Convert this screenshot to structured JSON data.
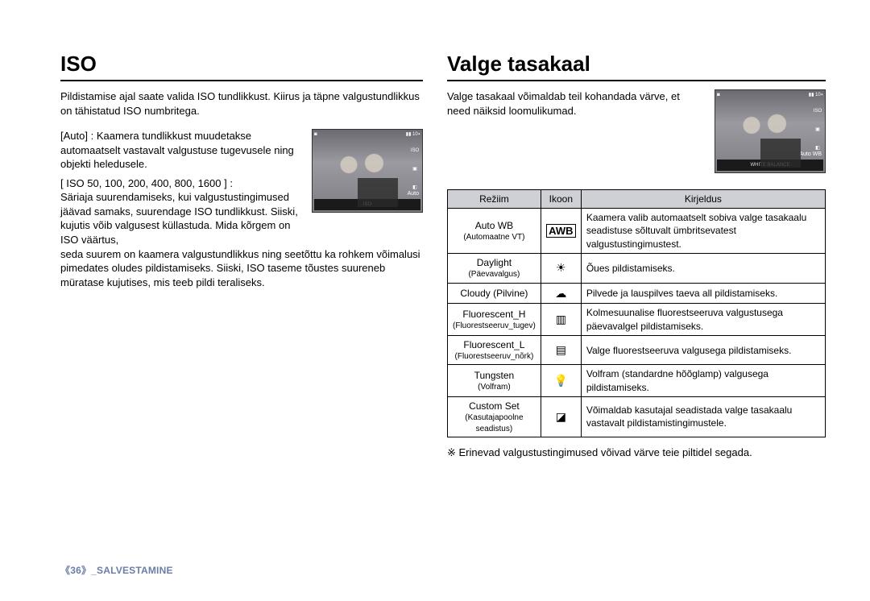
{
  "left": {
    "title": "ISO",
    "intro": "Pildistamise ajal saate valida ISO tundlikkust.\nKiirus ja täpne valgustundlikkus on tähistatud ISO numbritega.",
    "auto_label": "[Auto] :",
    "auto_text": "Kaamera tundlikkust muudetakse automaatselt vastavalt valgustuse tugevusele ning objekti heledusele.",
    "values_label": "[ ISO 50, 100, 200, 400, 800, 1600 ] :",
    "values_text": "Säriaja suurendamiseks, kui valgustustingimused jäävad samaks, suurendage ISO tundlikkust. Siiski, kujutis võib valgusest küllastuda. Mida kõrgem on ISO väärtus,",
    "rest": "seda suurem on kaamera valgustundlikkus ning seetõttu ka rohkem võimalusi pimedates oludes pildistamiseks. Siiski, ISO taseme tõustes suureneb müratase kujutises, mis teeb pildi teraliseks.",
    "thumb_label": "Auto",
    "thumb_strip": "ISO"
  },
  "right": {
    "title": "Valge tasakaal",
    "intro": "Valge tasakaal võimaldab teil kohandada värve, et need näiksid loomulikumad.",
    "thumb_label": "Auto WB",
    "thumb_title": "WHITE BALANCE",
    "table": {
      "headers": [
        "Režiim",
        "Ikoon",
        "Kirjeldus"
      ],
      "rows": [
        {
          "mode": "Auto WB",
          "sub": "(Automaatne VT)",
          "icon": "AWB",
          "icon_type": "text",
          "desc": "Kaamera valib automaatselt sobiva valge tasakaalu seadistuse sõltuvalt ümbritsevatest valgustustingimustest."
        },
        {
          "mode": "Daylight",
          "sub": "(Päevavalgus)",
          "icon": "☀",
          "icon_type": "glyph",
          "desc": "Õues pildistamiseks."
        },
        {
          "mode": "Cloudy (Pilvine)",
          "sub": "",
          "icon": "☁",
          "icon_type": "glyph",
          "desc": "Pilvede ja lauspilves taeva all pildistamiseks."
        },
        {
          "mode": "Fluorescent_H",
          "sub": "(Fluorestseeruv_tugev)",
          "icon": "▥",
          "icon_type": "glyph",
          "desc": "Kolmesuunalise fluorestseeruva valgustusega päevavalgel pildistamiseks."
        },
        {
          "mode": "Fluorescent_L",
          "sub": "(Fluorestseeruv_nõrk)",
          "icon": "▤",
          "icon_type": "glyph",
          "desc": "Valge fluorestseeruva valgusega pildistamiseks."
        },
        {
          "mode": "Tungsten",
          "sub": "(Volfram)",
          "icon": "💡",
          "icon_type": "glyph",
          "desc": "Volfram (standardne hõõglamp) valgusega pildistamiseks."
        },
        {
          "mode": "Custom Set",
          "sub": "(Kasutajapoolne seadistus)",
          "icon": "◪",
          "icon_type": "glyph",
          "desc": "Võimaldab kasutajal seadistada valge tasakaalu vastavalt pildistamistingimustele."
        }
      ]
    },
    "footnote": "※ Erinevad valgustustingimused võivad värve teie piltidel segada."
  },
  "footer": {
    "page": "36",
    "section": "_SALVESTAMINE"
  },
  "colors": {
    "heading_rule": "#000000",
    "table_header_bg": "#cfcfd6",
    "footer_text": "#6b7ea8"
  }
}
